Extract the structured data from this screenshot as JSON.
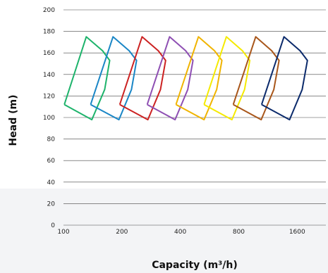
{
  "chart_data": {
    "type": "line",
    "xlabel": "Capacity (m³/h)",
    "ylabel": "Head (m)",
    "x_scale": "log2",
    "xlim": [
      100,
      2250
    ],
    "ylim": [
      0,
      200
    ],
    "y_ticks": [
      0,
      20,
      40,
      60,
      80,
      100,
      120,
      140,
      160,
      180,
      200
    ],
    "x_ticks": [
      {
        "value": 100,
        "label": "100"
      },
      {
        "value": 200,
        "label": "200"
      },
      {
        "value": 400,
        "label": "400"
      },
      {
        "value": 800,
        "label": "800"
      },
      {
        "value": 1600,
        "label": "1600"
      }
    ],
    "grid": "horizontal",
    "series": [
      {
        "color": "#1db36b",
        "points": [
          [
            101,
            112
          ],
          [
            131,
            175
          ],
          [
            159,
            162
          ],
          [
            173,
            153
          ],
          [
            163,
            126
          ],
          [
            140,
            98
          ],
          [
            101,
            112
          ]
        ]
      },
      {
        "color": "#1a86c6",
        "points": [
          [
            138,
            112
          ],
          [
            180,
            175
          ],
          [
            218,
            162
          ],
          [
            238,
            153
          ],
          [
            224,
            126
          ],
          [
            193,
            98
          ],
          [
            138,
            112
          ]
        ]
      },
      {
        "color": "#cc2222",
        "points": [
          [
            195,
            112
          ],
          [
            254,
            175
          ],
          [
            308,
            162
          ],
          [
            336,
            153
          ],
          [
            316,
            126
          ],
          [
            272,
            98
          ],
          [
            195,
            112
          ]
        ]
      },
      {
        "color": "#8e4fb3",
        "points": [
          [
            270,
            112
          ],
          [
            352,
            175
          ],
          [
            426,
            162
          ],
          [
            465,
            153
          ],
          [
            437,
            126
          ],
          [
            376,
            98
          ],
          [
            270,
            112
          ]
        ]
      },
      {
        "color": "#f0b400",
        "points": [
          [
            380,
            112
          ],
          [
            496,
            175
          ],
          [
            600,
            162
          ],
          [
            655,
            153
          ],
          [
            616,
            126
          ],
          [
            530,
            98
          ],
          [
            380,
            112
          ]
        ]
      },
      {
        "color": "#f5ea00",
        "points": [
          [
            530,
            112
          ],
          [
            691,
            175
          ],
          [
            836,
            162
          ],
          [
            912,
            153
          ],
          [
            857,
            126
          ],
          [
            738,
            98
          ],
          [
            530,
            112
          ]
        ]
      },
      {
        "color": "#a8561a",
        "points": [
          [
            750,
            112
          ],
          [
            978,
            175
          ],
          [
            1183,
            162
          ],
          [
            1291,
            153
          ],
          [
            1213,
            126
          ],
          [
            1044,
            98
          ],
          [
            750,
            112
          ]
        ]
      },
      {
        "color": "#0b2a6b",
        "points": [
          [
            1050,
            112
          ],
          [
            1369,
            175
          ],
          [
            1656,
            162
          ],
          [
            1807,
            153
          ],
          [
            1699,
            126
          ],
          [
            1462,
            98
          ],
          [
            1050,
            112
          ]
        ]
      }
    ]
  }
}
